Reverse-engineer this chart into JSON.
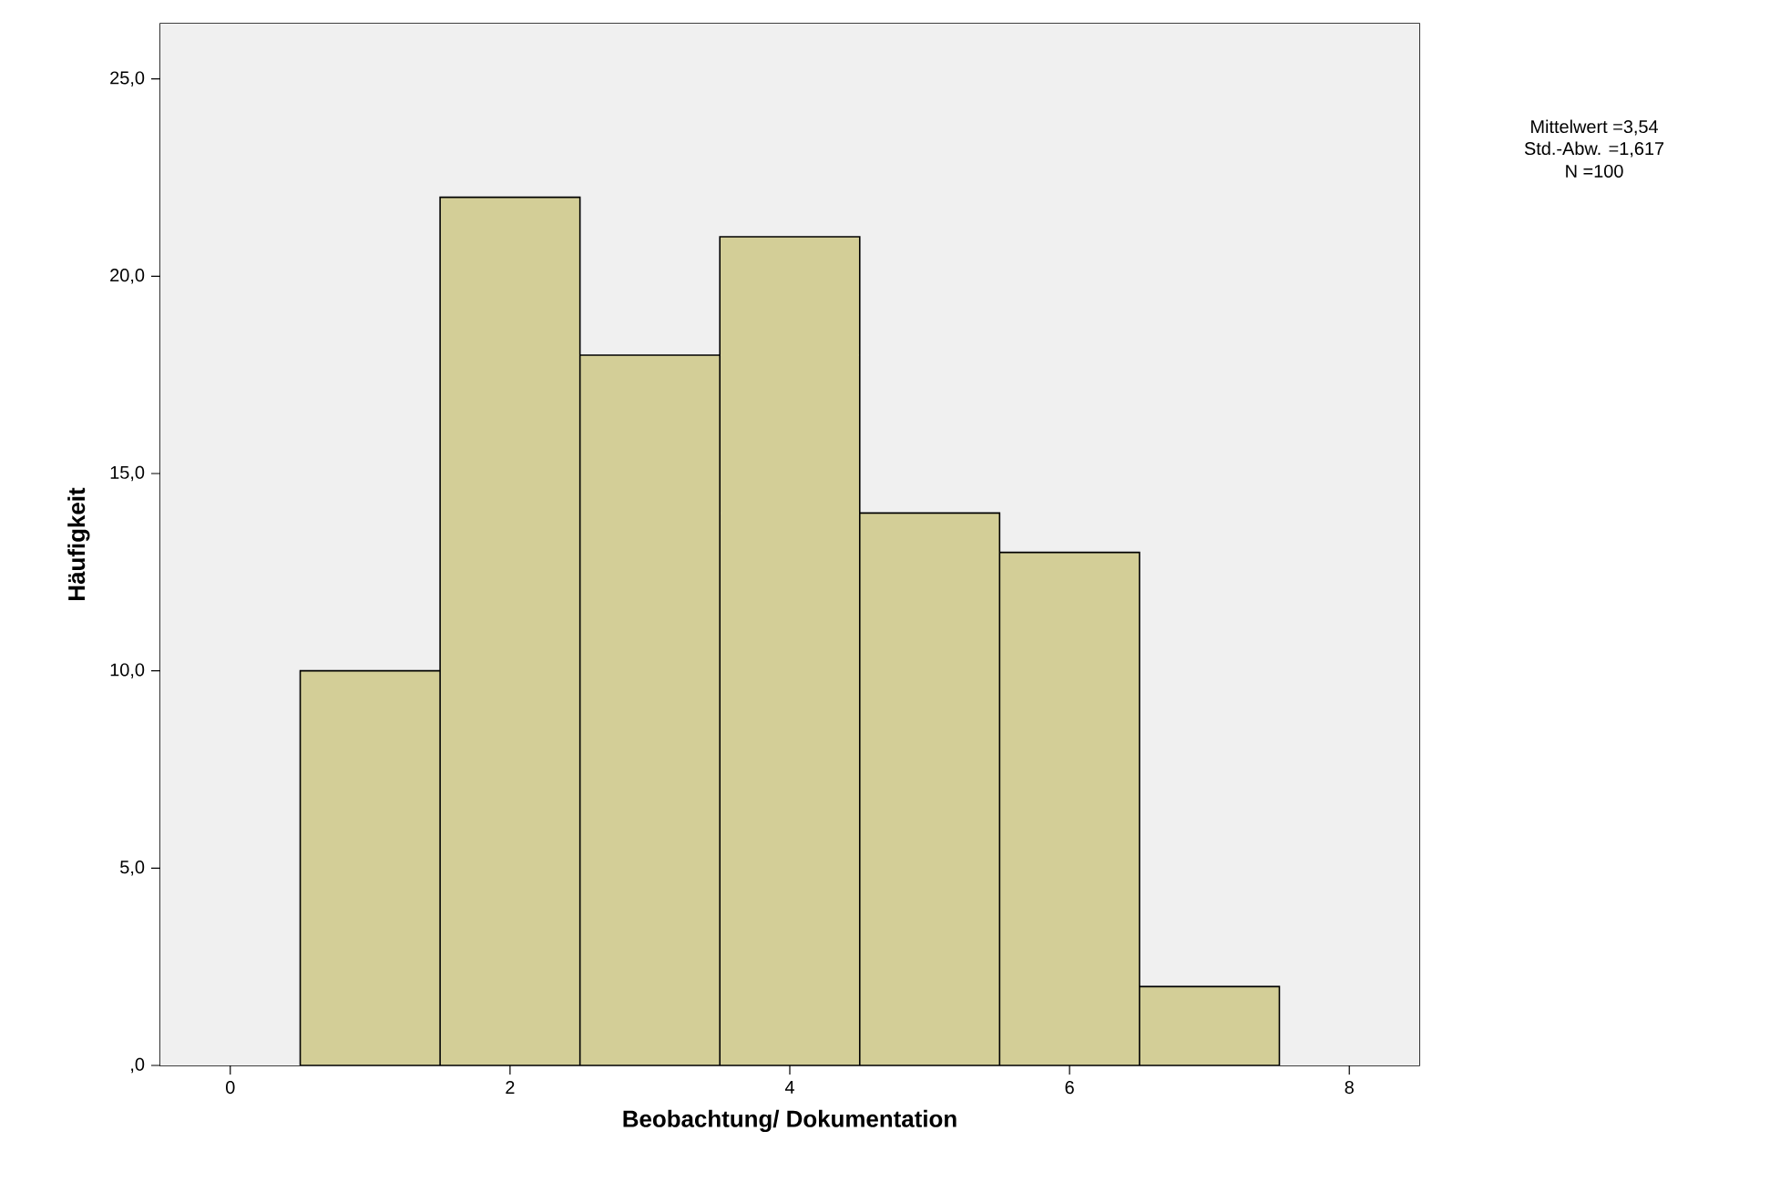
{
  "chart_data": {
    "type": "histogram",
    "xlabel": "Beobachtung/ Dokumentation",
    "ylabel": "Häufigkeit",
    "bins": [
      0.5,
      1.5,
      2.5,
      3.5,
      4.5,
      5.5,
      6.5,
      7.5
    ],
    "values": [
      10,
      22,
      18,
      21,
      14,
      13,
      2
    ],
    "color": "#d3ce97",
    "xlim": [
      -0.5,
      8.5
    ],
    "xticks": [
      0,
      2,
      4,
      6,
      8
    ],
    "ylim": [
      0,
      26.4
    ],
    "yticks": [
      {
        "value": 0,
        "label": ",0"
      },
      {
        "value": 5,
        "label": "5,0"
      },
      {
        "value": 10,
        "label": "10,0"
      },
      {
        "value": 15,
        "label": "15,0"
      },
      {
        "value": 20,
        "label": "20,0"
      },
      {
        "value": 25,
        "label": "25,0"
      }
    ],
    "annotations": [
      "Mittelwert =3,54",
      "Std.-Abw. =1,617",
      "N =100"
    ]
  }
}
